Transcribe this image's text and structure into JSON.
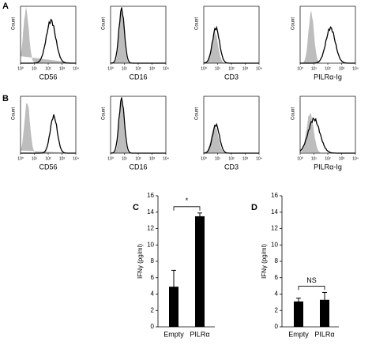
{
  "panel_labels": [
    "A",
    "B",
    "C",
    "D"
  ],
  "histograms": {
    "ylabel": "Count",
    "xticks": [
      "10⁰",
      "10¹",
      "10²",
      "10³",
      "10⁴"
    ],
    "rows": [
      {
        "panels": [
          "CD56",
          "CD16",
          "CD3",
          "PILRα-Ig"
        ]
      },
      {
        "panels": [
          "CD56",
          "CD16",
          "CD3",
          "PILRα-Ig"
        ]
      }
    ]
  },
  "chart_data": [
    {
      "type": "bar",
      "ylabel": "IFNγ (pg/ml)",
      "categories": [
        "Empty",
        "PILRα"
      ],
      "values": [
        4.9,
        13.5
      ],
      "errors": [
        2.0,
        0.4
      ],
      "color": "#000000",
      "ylim": [
        0,
        16
      ],
      "yticks": [
        0,
        2,
        4,
        6,
        8,
        10,
        12,
        14,
        16
      ],
      "annotation": "*"
    },
    {
      "type": "bar",
      "ylabel": "IFNγ (pg/ml)",
      "categories": [
        "Empty",
        "PILRα"
      ],
      "values": [
        3.1,
        3.3
      ],
      "errors": [
        0.4,
        0.9
      ],
      "color": "#000000",
      "ylim": [
        0,
        16
      ],
      "yticks": [
        0,
        2,
        4,
        6,
        8,
        10,
        12,
        14,
        16
      ],
      "annotation": "NS"
    }
  ]
}
